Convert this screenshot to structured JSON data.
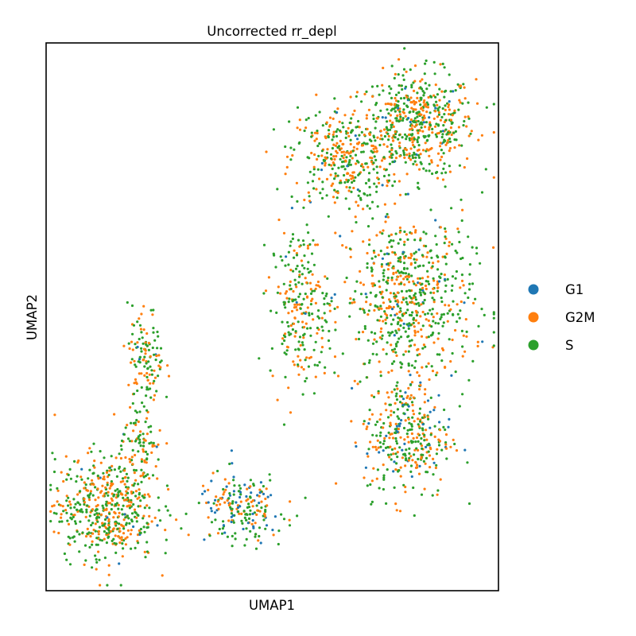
{
  "chart_data": {
    "type": "scatter",
    "title": "Uncorrected rr_depl",
    "xlabel": "UMAP1",
    "ylabel": "UMAP2",
    "xlim": [
      0,
      100
    ],
    "ylim": [
      0,
      100
    ],
    "ticks": "none",
    "grid": false,
    "legend_position": "right",
    "series": [
      {
        "name": "G1",
        "color": "#1f77b4"
      },
      {
        "name": "G2M",
        "color": "#ff7f0e"
      },
      {
        "name": "S",
        "color": "#2ca02c"
      }
    ],
    "clusters": [
      {
        "name_hint": "top-right",
        "center": [
          82,
          85
        ],
        "spread": [
          8,
          6
        ],
        "counts": [
          20,
          230,
          300
        ]
      },
      {
        "name_hint": "upper-middle",
        "center": [
          65,
          79
        ],
        "spread": [
          7,
          6
        ],
        "counts": [
          8,
          140,
          170
        ]
      },
      {
        "name_hint": "right-main",
        "center": [
          80,
          53
        ],
        "spread": [
          9,
          10
        ],
        "counts": [
          25,
          260,
          380
        ]
      },
      {
        "name_hint": "right-lower",
        "center": [
          80,
          28
        ],
        "spread": [
          6,
          7
        ],
        "counts": [
          45,
          130,
          160
        ]
      },
      {
        "name_hint": "middle",
        "center": [
          56,
          52
        ],
        "spread": [
          4,
          9
        ],
        "counts": [
          5,
          90,
          140
        ]
      },
      {
        "name_hint": "left-lower",
        "center": [
          13,
          15
        ],
        "spread": [
          7,
          6
        ],
        "counts": [
          8,
          220,
          280
        ]
      },
      {
        "name_hint": "left-upper",
        "center": [
          22,
          42
        ],
        "spread": [
          2.5,
          6
        ],
        "counts": [
          3,
          50,
          70
        ]
      },
      {
        "name_hint": "left-mid",
        "center": [
          21,
          26
        ],
        "spread": [
          3,
          5
        ],
        "counts": [
          3,
          40,
          60
        ]
      },
      {
        "name_hint": "bottom-middle",
        "center": [
          43,
          15
        ],
        "spread": [
          6,
          4
        ],
        "counts": [
          55,
          60,
          90
        ]
      }
    ]
  }
}
